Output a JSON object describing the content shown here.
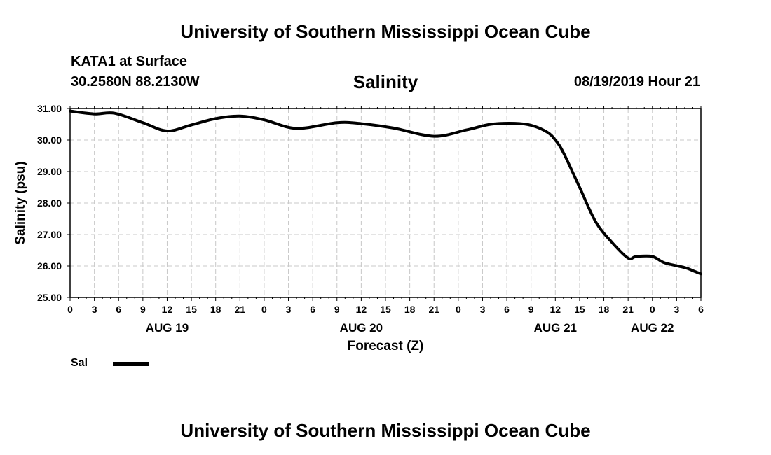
{
  "header": {
    "title": "University of Southern Mississippi Ocean Cube",
    "station": "KATA1 at Surface",
    "coordinates": "30.2580N 88.2130W",
    "chart_title": "Salinity",
    "datetime": "08/19/2019 Hour 21"
  },
  "footer": {
    "title": "University of Southern Mississippi Ocean Cube"
  },
  "legend": {
    "label": "Sal",
    "color": "#000000"
  },
  "chart_data": {
    "type": "line",
    "title": "Salinity",
    "xlabel": "Forecast (Z)",
    "ylabel": "Salinity (psu)",
    "ylim": [
      25.0,
      31.0
    ],
    "xlim_hours": [
      0,
      78
    ],
    "y_ticks": [
      "25.00",
      "26.00",
      "27.00",
      "28.00",
      "29.00",
      "30.00",
      "31.00"
    ],
    "x_tick_labels": [
      "0",
      "3",
      "6",
      "9",
      "12",
      "15",
      "18",
      "21",
      "0",
      "3",
      "6",
      "9",
      "12",
      "15",
      "18",
      "21",
      "0",
      "3",
      "6",
      "9",
      "12",
      "15",
      "18",
      "21",
      "0",
      "3",
      "6"
    ],
    "day_labels": [
      {
        "label": "AUG 19",
        "hour": 12
      },
      {
        "label": "AUG 20",
        "hour": 36
      },
      {
        "label": "AUG 21",
        "hour": 60
      },
      {
        "label": "AUG 22",
        "hour": 72
      }
    ],
    "grid": true,
    "series": [
      {
        "name": "Sal",
        "x": [
          0,
          3,
          5.5,
          9,
          12,
          15,
          18,
          21,
          24,
          28,
          33,
          36,
          40,
          45,
          49,
          52,
          55,
          57,
          59,
          60,
          61,
          63,
          65,
          67,
          69,
          70,
          72,
          73.5,
          76,
          77,
          78
        ],
        "values": [
          30.92,
          30.83,
          30.85,
          30.55,
          30.29,
          30.48,
          30.68,
          30.76,
          30.64,
          30.37,
          30.55,
          30.52,
          30.38,
          30.12,
          30.32,
          30.5,
          30.53,
          30.47,
          30.25,
          30.0,
          29.6,
          28.5,
          27.4,
          26.75,
          26.25,
          26.3,
          26.3,
          26.1,
          25.95,
          25.85,
          25.75
        ]
      }
    ]
  }
}
